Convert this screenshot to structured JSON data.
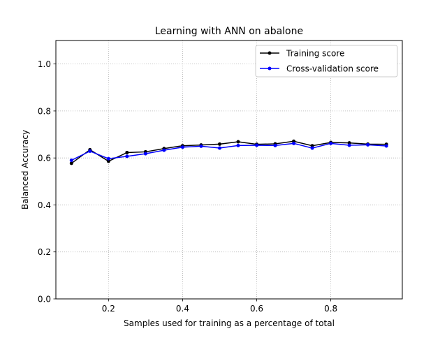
{
  "chart_data": {
    "type": "line",
    "title": "Learning with ANN on abalone",
    "xlabel": "Samples used for training as a percentage of total",
    "ylabel": "Balanced Accuracy",
    "xlim": [
      0.058,
      0.993
    ],
    "ylim": [
      0.0,
      1.1
    ],
    "xticks": [
      0.2,
      0.4,
      0.6,
      0.8
    ],
    "xtick_labels": [
      "0.2",
      "0.4",
      "0.6",
      "0.8"
    ],
    "yticks": [
      0.0,
      0.2,
      0.4,
      0.6,
      0.8,
      1.0
    ],
    "ytick_labels": [
      "0.0",
      "0.2",
      "0.4",
      "0.6",
      "0.8",
      "1.0"
    ],
    "grid": true,
    "legend_position": "top-right",
    "x": [
      0.1,
      0.15,
      0.2,
      0.25,
      0.3,
      0.35,
      0.4,
      0.45,
      0.5,
      0.55,
      0.6,
      0.65,
      0.7,
      0.75,
      0.8,
      0.85,
      0.9,
      0.95
    ],
    "series": [
      {
        "name": "Training score",
        "color": "#000000",
        "values": [
          0.577,
          0.635,
          0.586,
          0.623,
          0.626,
          0.64,
          0.652,
          0.655,
          0.659,
          0.669,
          0.658,
          0.66,
          0.671,
          0.652,
          0.666,
          0.664,
          0.659,
          0.658
        ]
      },
      {
        "name": "Cross-validation score",
        "color": "#0000ff",
        "values": [
          0.59,
          0.629,
          0.597,
          0.607,
          0.618,
          0.633,
          0.646,
          0.65,
          0.642,
          0.653,
          0.654,
          0.653,
          0.662,
          0.642,
          0.662,
          0.654,
          0.656,
          0.651
        ]
      }
    ]
  }
}
